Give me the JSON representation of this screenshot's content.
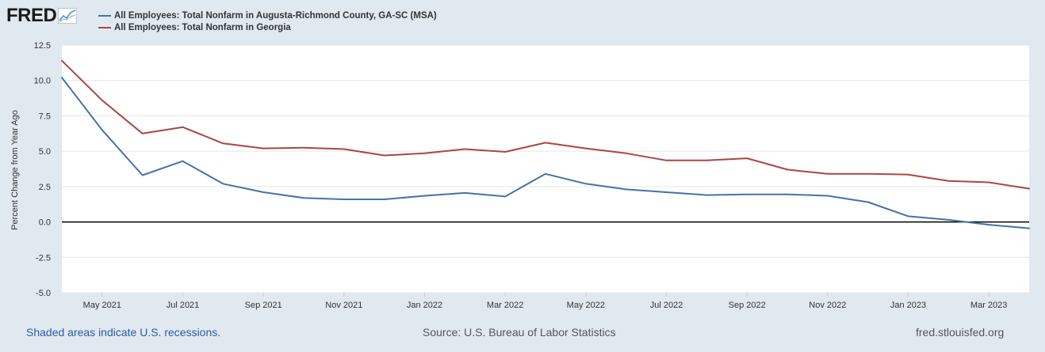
{
  "logo": {
    "text": "FRED",
    "icon": "chart-line-icon"
  },
  "legend": [
    {
      "label": "All Employees: Total Nonfarm in Augusta-Richmond County, GA-SC (MSA)",
      "color": "#4572a7"
    },
    {
      "label": "All Employees: Total Nonfarm in Georgia",
      "color": "#aa4643"
    }
  ],
  "footer": {
    "recession_note": "Shaded areas indicate U.S. recessions.",
    "source": "Source: U.S. Bureau of Labor Statistics",
    "site": "fred.stlouisfed.org"
  },
  "chart_data": {
    "type": "line",
    "title": "",
    "xlabel": "",
    "ylabel": "Percent Change from Year Ago",
    "ylim": [
      -5.0,
      12.5
    ],
    "yticks": [
      "12.5",
      "10.0",
      "7.5",
      "5.0",
      "2.5",
      "0.0",
      "-2.5",
      "-5.0"
    ],
    "xlim": [
      "2021-04",
      "2023-04"
    ],
    "xticks": [
      {
        "date": "2021-05",
        "label": "May 2021"
      },
      {
        "date": "2021-07",
        "label": "Jul 2021"
      },
      {
        "date": "2021-09",
        "label": "Sep 2021"
      },
      {
        "date": "2021-11",
        "label": "Nov 2021"
      },
      {
        "date": "2022-01",
        "label": "Jan 2022"
      },
      {
        "date": "2022-03",
        "label": "Mar 2022"
      },
      {
        "date": "2022-05",
        "label": "May 2022"
      },
      {
        "date": "2022-07",
        "label": "Jul 2022"
      },
      {
        "date": "2022-09",
        "label": "Sep 2022"
      },
      {
        "date": "2022-11",
        "label": "Nov 2022"
      },
      {
        "date": "2023-01",
        "label": "Jan 2023"
      },
      {
        "date": "2023-03",
        "label": "Mar 2023"
      }
    ],
    "grid": true,
    "zero_line": true,
    "x": [
      "2021-04",
      "2021-05",
      "2021-06",
      "2021-07",
      "2021-08",
      "2021-09",
      "2021-10",
      "2021-11",
      "2021-12",
      "2022-01",
      "2022-02",
      "2022-03",
      "2022-04",
      "2022-05",
      "2022-06",
      "2022-07",
      "2022-08",
      "2022-09",
      "2022-10",
      "2022-11",
      "2022-12",
      "2023-01",
      "2023-02",
      "2023-03",
      "2023-04"
    ],
    "series": [
      {
        "name": "All Employees: Total Nonfarm in Augusta-Richmond County, GA-SC (MSA)",
        "color": "#4572a7",
        "values": [
          10.2,
          6.5,
          3.3,
          4.3,
          2.7,
          2.1,
          1.7,
          1.6,
          1.6,
          1.85,
          2.05,
          1.8,
          3.4,
          2.7,
          2.3,
          2.1,
          1.9,
          1.95,
          1.95,
          1.85,
          1.4,
          0.4,
          0.15,
          -0.2,
          -0.45
        ]
      },
      {
        "name": "All Employees: Total Nonfarm in Georgia",
        "color": "#aa4643",
        "values": [
          11.4,
          8.6,
          6.25,
          6.7,
          5.55,
          5.2,
          5.25,
          5.15,
          4.7,
          4.85,
          5.15,
          4.95,
          5.6,
          5.2,
          4.85,
          4.35,
          4.35,
          4.5,
          3.7,
          3.4,
          3.4,
          3.35,
          2.9,
          2.8,
          2.35
        ]
      }
    ]
  }
}
